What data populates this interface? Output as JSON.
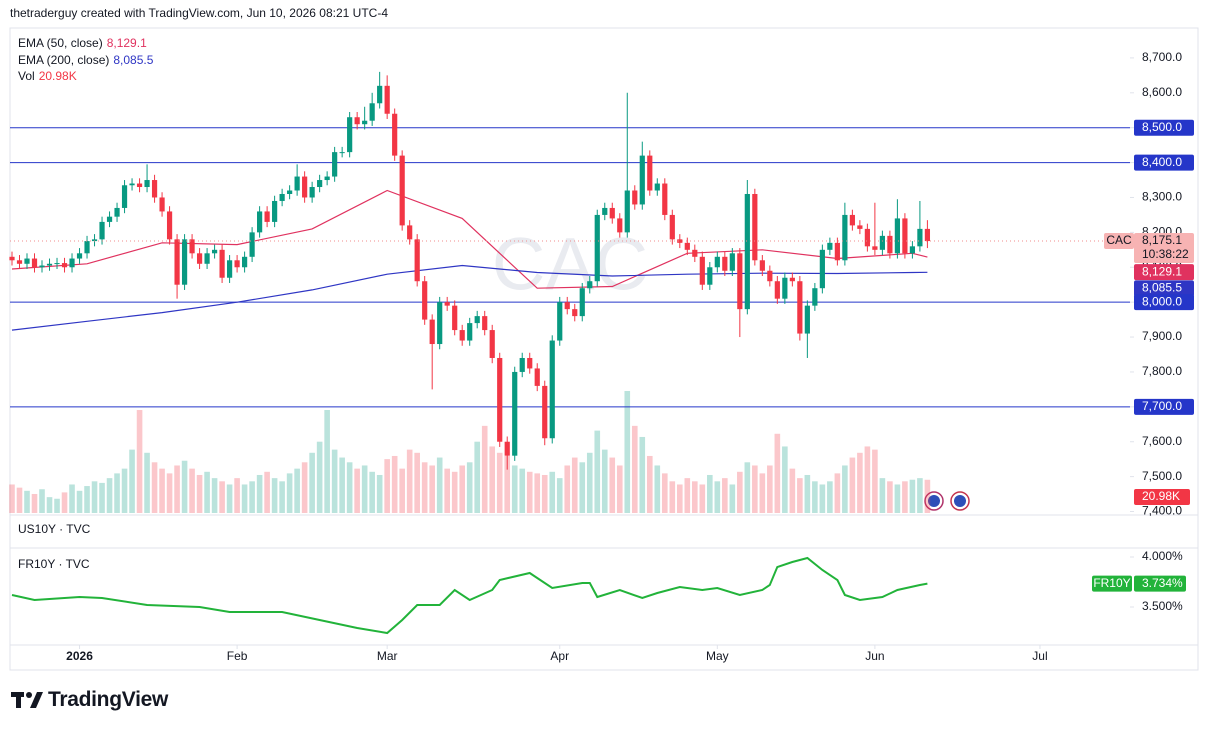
{
  "header": "thetraderguy created with TradingView.com, Jun 10, 2026 08:21 UTC-4",
  "logo": "TradingView",
  "chart_data": [
    {
      "type": "candlestick",
      "watermark": "CAC",
      "up_color": "#089981",
      "down_color": "#f23645",
      "xlim": [
        0,
        149
      ],
      "xticks": [
        {
          "value": 9,
          "label": "2026"
        },
        {
          "value": 30,
          "label": "Feb"
        },
        {
          "value": 50,
          "label": "Mar"
        },
        {
          "value": 73,
          "label": "Apr"
        },
        {
          "value": 94,
          "label": "May"
        },
        {
          "value": 115,
          "label": "Jun"
        },
        {
          "value": 137,
          "label": "Jul"
        }
      ],
      "ylim": [
        7390,
        8780
      ],
      "yticks": [
        {
          "value": 7400,
          "label": "7,400.0"
        },
        {
          "value": 7500,
          "label": "7,500.0"
        },
        {
          "value": 7600,
          "label": "7,600.0"
        },
        {
          "value": 7700,
          "label": "7,700.0"
        },
        {
          "value": 7800,
          "label": "7,800.0"
        },
        {
          "value": 7900,
          "label": "7,900.0"
        },
        {
          "value": 8000,
          "label": "8,000.0"
        },
        {
          "value": 8100,
          "label": "8,100.0"
        },
        {
          "value": 8200,
          "label": "8,200.0"
        },
        {
          "value": 8300,
          "label": "8,300.0"
        },
        {
          "value": 8400,
          "label": "8,400.0"
        },
        {
          "value": 8500,
          "label": "8,500.0"
        },
        {
          "value": 8600,
          "label": "8,600.0"
        },
        {
          "value": 8700,
          "label": "8,700.0"
        }
      ],
      "levels": [
        {
          "value": 8500,
          "label": "8,500.0"
        },
        {
          "value": 8400,
          "label": "8,400.0"
        },
        {
          "value": 8000,
          "label": "8,000.0"
        },
        {
          "value": 7700,
          "label": "7,700.0"
        }
      ],
      "level_color": "#2536c9",
      "symbol": "CAC",
      "last_label": "8,175.1",
      "countdown": "10:38:22",
      "open": [
        8130,
        8120,
        8110,
        8125,
        8100,
        8105,
        8110,
        8112,
        8100,
        8125,
        8140,
        8175,
        8180,
        8230,
        8245,
        8270,
        8335,
        8340,
        8330,
        8350,
        8300,
        8260,
        8180,
        8050,
        8180,
        8140,
        8110,
        8140,
        8150,
        8070,
        8120,
        8100,
        8130,
        8200,
        8260,
        8230,
        8290,
        8310,
        8320,
        8360,
        8300,
        8330,
        8350,
        8360,
        8430,
        8430,
        8530,
        8510,
        8520,
        8570,
        8620,
        8540,
        8420,
        8220,
        8180,
        8060,
        7950,
        7880,
        8000,
        7990,
        7920,
        7890,
        7940,
        7960,
        7920,
        7840,
        7600,
        7560,
        7800,
        7840,
        7810,
        7760,
        7610,
        7890,
        8000,
        7980,
        7960,
        8040,
        8060,
        8250,
        8270,
        8240,
        8200,
        8320,
        8280,
        8420,
        8320,
        8340,
        8250,
        8180,
        8170,
        8150,
        8130,
        8050,
        8100,
        8130,
        8090,
        8140,
        7980,
        8310,
        8120,
        8090,
        8060,
        8010,
        8070,
        8060,
        7910,
        7990,
        8040,
        8150,
        8170,
        8120,
        8250,
        8220,
        8210,
        8160,
        8150,
        8190,
        8140,
        8240,
        8140,
        8160,
        8210
      ],
      "high": [
        8145,
        8135,
        8140,
        8140,
        8120,
        8125,
        8127,
        8127,
        8140,
        8155,
        8190,
        8195,
        8245,
        8260,
        8285,
        8350,
        8355,
        8355,
        8395,
        8365,
        8315,
        8275,
        8195,
        8195,
        8195,
        8155,
        8155,
        8165,
        8165,
        8135,
        8135,
        8145,
        8215,
        8275,
        8275,
        8305,
        8325,
        8335,
        8395,
        8375,
        8345,
        8365,
        8375,
        8445,
        8445,
        8545,
        8545,
        8560,
        8600,
        8660,
        8650,
        8555,
        8435,
        8235,
        8195,
        8075,
        7965,
        8015,
        8015,
        8005,
        7935,
        7955,
        7975,
        7975,
        7935,
        7855,
        7615,
        7815,
        7855,
        7855,
        7825,
        7775,
        7905,
        8015,
        8015,
        7995,
        8055,
        8075,
        8265,
        8285,
        8285,
        8255,
        8600,
        8335,
        8460,
        8435,
        8355,
        8355,
        8265,
        8195,
        8185,
        8165,
        8145,
        8115,
        8145,
        8145,
        8155,
        8155,
        8350,
        8325,
        8135,
        8105,
        8075,
        8085,
        8085,
        8075,
        8005,
        8055,
        8165,
        8185,
        8185,
        8285,
        8265,
        8235,
        8225,
        8285,
        8205,
        8205,
        8295,
        8255,
        8175,
        8290,
        8235
      ],
      "low": [
        8105,
        8095,
        8095,
        8085,
        8085,
        8090,
        8095,
        8085,
        8085,
        8110,
        8125,
        8160,
        8165,
        8215,
        8230,
        8255,
        8320,
        8315,
        8315,
        8285,
        8245,
        8165,
        8010,
        8035,
        8125,
        8095,
        8095,
        8125,
        8055,
        8055,
        8085,
        8085,
        8115,
        8185,
        8215,
        8215,
        8275,
        8295,
        8305,
        8285,
        8285,
        8315,
        8335,
        8345,
        8415,
        8415,
        8495,
        8495,
        8505,
        8555,
        8525,
        8405,
        8205,
        8165,
        8045,
        7935,
        7750,
        7865,
        7975,
        7905,
        7875,
        7875,
        7925,
        7905,
        7825,
        7585,
        7520,
        7545,
        7785,
        7795,
        7745,
        7590,
        7595,
        7875,
        7965,
        7945,
        7945,
        8025,
        8045,
        8235,
        8225,
        8185,
        8185,
        8265,
        8265,
        8305,
        8305,
        8235,
        8165,
        8155,
        8135,
        8115,
        8035,
        8035,
        8085,
        8075,
        8075,
        7900,
        7965,
        8105,
        8075,
        8045,
        7995,
        7995,
        8045,
        7890,
        7840,
        7975,
        8025,
        8135,
        8105,
        8105,
        8205,
        8195,
        8145,
        8135,
        8135,
        8125,
        8125,
        8125,
        8125,
        8145,
        8155
      ],
      "close": [
        8120,
        8110,
        8125,
        8100,
        8105,
        8110,
        8112,
        8100,
        8125,
        8140,
        8175,
        8180,
        8230,
        8245,
        8270,
        8335,
        8340,
        8330,
        8350,
        8300,
        8260,
        8180,
        8050,
        8180,
        8140,
        8110,
        8140,
        8150,
        8070,
        8120,
        8100,
        8130,
        8200,
        8260,
        8230,
        8290,
        8310,
        8320,
        8360,
        8300,
        8330,
        8350,
        8360,
        8430,
        8430,
        8530,
        8510,
        8520,
        8570,
        8620,
        8540,
        8420,
        8220,
        8180,
        8060,
        7950,
        7880,
        8000,
        7990,
        7920,
        7890,
        7940,
        7960,
        7920,
        7840,
        7600,
        7560,
        7800,
        7840,
        7810,
        7760,
        7610,
        7890,
        8000,
        7980,
        7960,
        8040,
        8060,
        8250,
        8270,
        8240,
        8200,
        8320,
        8280,
        8420,
        8320,
        8340,
        8250,
        8180,
        8170,
        8150,
        8130,
        8050,
        8100,
        8130,
        8090,
        8140,
        7980,
        8310,
        8120,
        8090,
        8060,
        8010,
        8070,
        8060,
        7910,
        7990,
        8040,
        8150,
        8170,
        8120,
        8250,
        8220,
        8210,
        8160,
        8150,
        8190,
        8140,
        8240,
        8140,
        8160,
        8210,
        8175.1
      ],
      "volume": {
        "name": "Vol",
        "last_label": "20.98K",
        "values": [
          18000,
          16000,
          14000,
          12000,
          15000,
          10000,
          9000,
          13000,
          18000,
          14000,
          17000,
          20000,
          19000,
          22000,
          25000,
          28000,
          40000,
          65000,
          38000,
          32000,
          28000,
          25000,
          30000,
          33000,
          28000,
          24000,
          26000,
          22000,
          20000,
          18000,
          22000,
          18000,
          20000,
          24000,
          26000,
          22000,
          20000,
          25000,
          28000,
          32000,
          38000,
          45000,
          65000,
          40000,
          35000,
          32000,
          28000,
          30000,
          26000,
          24000,
          34000,
          36000,
          28000,
          40000,
          38000,
          32000,
          30000,
          35000,
          28000,
          26000,
          30000,
          32000,
          45000,
          55000,
          42000,
          38000,
          36000,
          30000,
          28000,
          26000,
          25000,
          24000,
          26000,
          22000,
          30000,
          35000,
          32000,
          38000,
          52000,
          40000,
          35000,
          30000,
          77000,
          55000,
          48000,
          36000,
          30000,
          25000,
          20000,
          18000,
          22000,
          20000,
          18000,
          24000,
          20000,
          22000,
          18000,
          26000,
          32000,
          30000,
          25000,
          30000,
          50000,
          42000,
          28000,
          22000,
          24000,
          20000,
          18000,
          20000,
          25000,
          30000,
          35000,
          38000,
          42000,
          40000,
          22000,
          20000,
          18000,
          20000,
          21000,
          22000,
          20980
        ]
      },
      "series": [
        {
          "name": "EMA (50, close)",
          "color": "#e0325f",
          "last_label": "8,129.1",
          "x": [
            0,
            10,
            20,
            30,
            40,
            50,
            60,
            70,
            80,
            90,
            100,
            110,
            120,
            122
          ],
          "values": [
            8095,
            8110,
            8170,
            8165,
            8210,
            8320,
            8240,
            8040,
            8045,
            8140,
            8150,
            8125,
            8140,
            8129.1
          ]
        },
        {
          "name": "EMA (200, close)",
          "color": "#2f36c4",
          "last_label": "8,085.5",
          "x": [
            0,
            10,
            20,
            30,
            40,
            50,
            60,
            70,
            80,
            90,
            100,
            110,
            120,
            122
          ],
          "values": [
            7920,
            7945,
            7970,
            8000,
            8035,
            8080,
            8105,
            8085,
            8075,
            8080,
            8083,
            8082,
            8085,
            8085.5
          ]
        }
      ]
    },
    {
      "type": "pane",
      "title": "US10Y · TVC"
    },
    {
      "type": "line",
      "title": "FR10Y · TVC",
      "xlim": [
        0,
        149
      ],
      "ylim": [
        3.12,
        4.09
      ],
      "yticks": [
        {
          "value": 4,
          "label": "4.000%"
        },
        {
          "value": 3.5,
          "label": "3.500%"
        }
      ],
      "series": [
        {
          "name": "FR10Y",
          "color": "#22b33a",
          "last_label": "3.734%",
          "x": [
            0,
            3,
            9,
            12,
            18,
            25,
            29,
            36,
            41,
            46,
            50,
            52,
            54,
            57,
            59,
            61,
            64,
            65,
            69,
            72,
            76,
            77,
            78,
            81,
            84,
            86,
            89,
            92,
            94,
            97,
            100,
            101,
            102,
            104,
            106,
            108,
            110,
            111,
            113,
            116,
            118,
            121,
            122
          ],
          "values": [
            3.62,
            3.57,
            3.6,
            3.59,
            3.52,
            3.5,
            3.45,
            3.45,
            3.37,
            3.29,
            3.24,
            3.37,
            3.52,
            3.52,
            3.67,
            3.57,
            3.67,
            3.77,
            3.84,
            3.69,
            3.74,
            3.74,
            3.6,
            3.67,
            3.59,
            3.64,
            3.7,
            3.67,
            3.69,
            3.62,
            3.67,
            3.72,
            3.9,
            3.95,
            3.99,
            3.87,
            3.77,
            3.62,
            3.57,
            3.6,
            3.67,
            3.72,
            3.734
          ]
        }
      ]
    }
  ]
}
